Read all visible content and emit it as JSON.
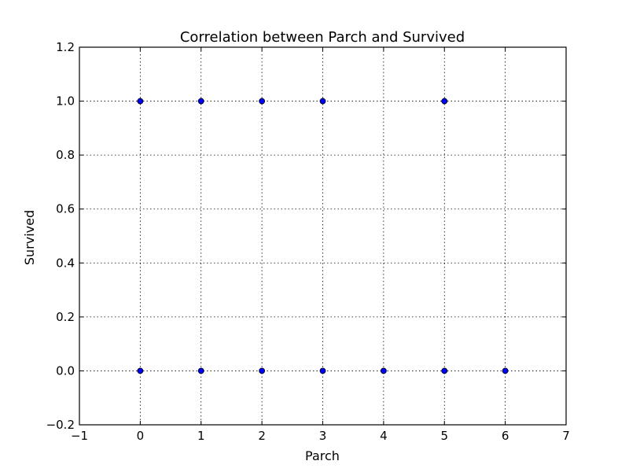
{
  "chart_data": {
    "type": "scatter",
    "title": "Correlation between Parch and Survived",
    "xlabel": "Parch",
    "ylabel": "Survived",
    "xlim": [
      -1,
      7
    ],
    "ylim": [
      -0.2,
      1.2
    ],
    "xticks": [
      "−1",
      "0",
      "1",
      "2",
      "3",
      "4",
      "5",
      "6",
      "7"
    ],
    "xtick_values": [
      -1,
      0,
      1,
      2,
      3,
      4,
      5,
      6,
      7
    ],
    "yticks": [
      "−0.2",
      "0.0",
      "0.2",
      "0.4",
      "0.6",
      "0.8",
      "1.0",
      "1.2"
    ],
    "ytick_values": [
      -0.2,
      0.0,
      0.2,
      0.4,
      0.6,
      0.8,
      1.0,
      1.2
    ],
    "grid": true,
    "point_color": "#0000ff",
    "points": [
      {
        "x": 0,
        "y": 1.0
      },
      {
        "x": 1,
        "y": 1.0
      },
      {
        "x": 2,
        "y": 1.0
      },
      {
        "x": 3,
        "y": 1.0
      },
      {
        "x": 5,
        "y": 1.0
      },
      {
        "x": 0,
        "y": 0.0
      },
      {
        "x": 1,
        "y": 0.0
      },
      {
        "x": 2,
        "y": 0.0
      },
      {
        "x": 3,
        "y": 0.0
      },
      {
        "x": 4,
        "y": 0.0
      },
      {
        "x": 5,
        "y": 0.0
      },
      {
        "x": 6,
        "y": 0.0
      }
    ]
  }
}
